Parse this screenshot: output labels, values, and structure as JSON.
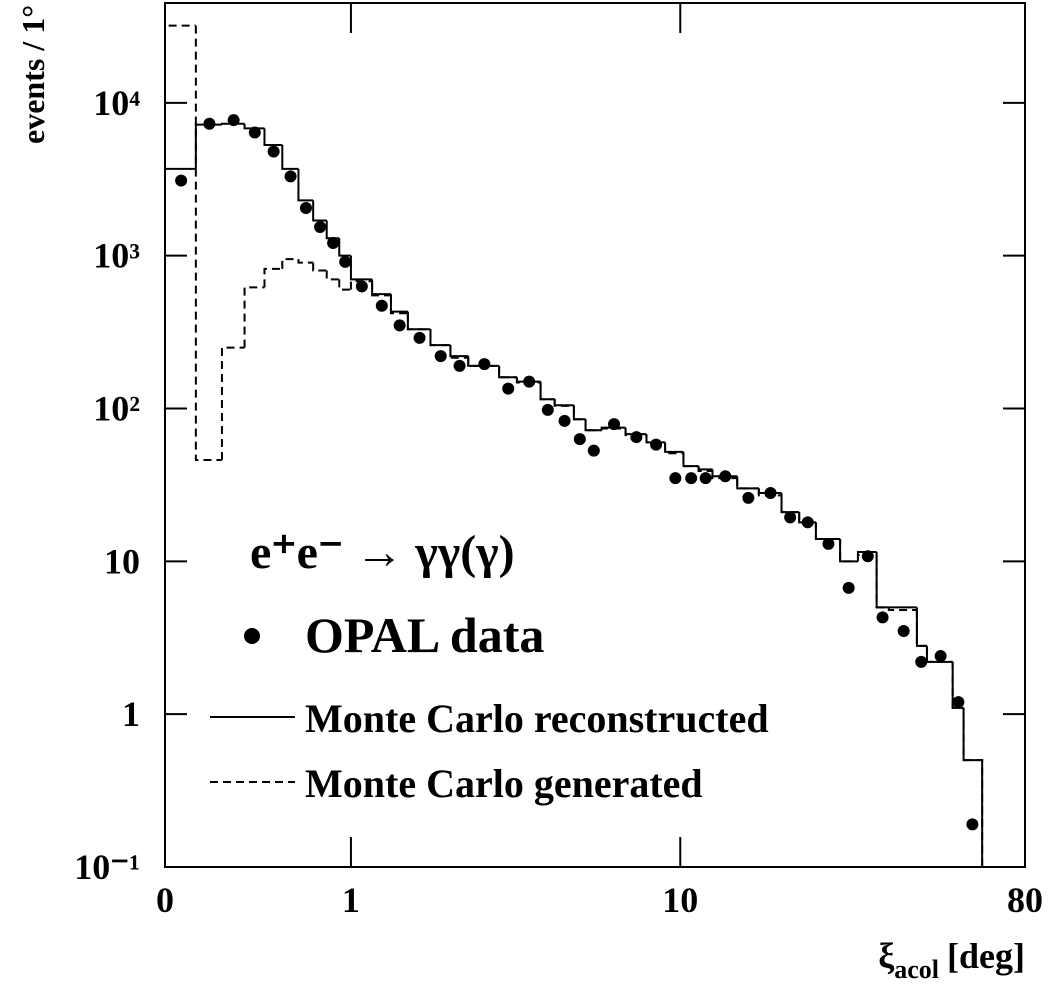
{
  "chart_data": {
    "type": "histogram",
    "annotation": "e⁺e⁻ → γγ(γ)",
    "xlabel": {
      "symbol": "ξ",
      "subscript": "acol",
      "unit": "[deg]"
    },
    "ylabel": "events / 1°",
    "yscale": "log",
    "xlim": [
      0,
      80
    ],
    "ylim": [
      0.1,
      45000
    ],
    "xticks": [
      0,
      1,
      10,
      80
    ],
    "yticks": [
      {
        "value": 0.1,
        "label": "10⁻¹"
      },
      1,
      10,
      {
        "value": 100,
        "label": "10²"
      },
      {
        "value": 1000,
        "label": "10³"
      },
      {
        "value": 10000,
        "label": "10⁴"
      }
    ],
    "bins": [
      0,
      0.1,
      0.2,
      0.3,
      0.4,
      0.5,
      0.6,
      0.7,
      0.8,
      0.9,
      1.0,
      1.2,
      1.4,
      1.6,
      1.9,
      2.2,
      2.5,
      3.1,
      3.5,
      4.1,
      4.5,
      5.1,
      5.5,
      6.1,
      7.1,
      8.1,
      9.1,
      10.2,
      11.2,
      12.2,
      14.2,
      16.2,
      18.6,
      20.7,
      22.9,
      26.5,
      29.5,
      33,
      35.5,
      42,
      44.6,
      52,
      55.5,
      62
    ],
    "x": [
      0.05,
      0.15,
      0.25,
      0.35,
      0.45,
      0.55,
      0.65,
      0.75,
      0.85,
      0.95,
      1.1,
      1.3,
      1.5,
      1.75,
      2.05,
      2.35,
      2.8,
      3.3,
      3.8,
      4.3,
      4.8,
      5.3,
      5.8,
      6.6,
      7.6,
      8.6,
      9.7,
      10.7,
      11.7,
      13.2,
      15.2,
      17.4,
      19.6,
      21.8,
      24.7,
      27.9,
      31.3,
      34.2,
      38.8,
      43.1,
      48.4,
      53.8,
      58.5
    ],
    "series": [
      {
        "name": "OPAL data",
        "style": "points",
        "color": "#000000",
        "values": [
          3100,
          7300,
          7700,
          6400,
          4800,
          3300,
          2050,
          1540,
          1210,
          910,
          630,
          470,
          350,
          290,
          220,
          190,
          195,
          135,
          150,
          98,
          83,
          63,
          53,
          79,
          65,
          58,
          35,
          35,
          35,
          36,
          26,
          28,
          19.4,
          18,
          13,
          6.7,
          10.8,
          4.3,
          3.5,
          2.2,
          2.4,
          1.2,
          0.19
        ]
      },
      {
        "name": "Monte Carlo reconstructed",
        "style": "solid",
        "color": "#000000",
        "values": [
          3700,
          7200,
          7300,
          6800,
          5300,
          3700,
          2300,
          1700,
          1300,
          1000,
          700,
          560,
          430,
          330,
          260,
          220,
          190,
          160,
          150,
          115,
          105,
          85,
          72,
          75,
          68,
          60,
          52,
          42,
          40,
          36,
          30,
          28,
          21,
          18,
          14,
          10,
          11.5,
          5,
          5,
          2.8,
          2.2,
          1.1,
          0.5
        ]
      },
      {
        "name": "Monte Carlo generated",
        "style": "dashed",
        "color": "#000000",
        "values": [
          32000,
          46,
          250,
          620,
          820,
          950,
          900,
          800,
          700,
          600,
          680,
          550,
          420,
          330,
          260,
          215,
          190,
          160,
          148,
          115,
          104,
          85,
          72,
          74,
          67,
          59,
          51,
          42,
          39,
          35,
          30,
          27,
          21,
          18,
          14,
          10,
          11,
          5,
          4.8,
          2.8,
          2.2,
          1.1,
          0.5
        ]
      }
    ]
  }
}
